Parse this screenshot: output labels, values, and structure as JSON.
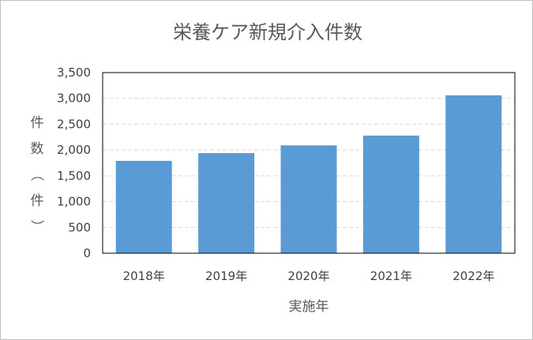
{
  "chart_data": {
    "type": "bar",
    "title": "栄養ケア新規介入件数",
    "xlabel": "実施年",
    "ylabel": "件数（件）",
    "categories": [
      "2018年",
      "2019年",
      "2020年",
      "2021年",
      "2022年"
    ],
    "values": [
      1790,
      1940,
      2090,
      2280,
      3060
    ],
    "ylim": [
      0,
      3500
    ],
    "yticks": [
      "0",
      "500",
      "1,000",
      "1,500",
      "2,000",
      "2,500",
      "3,000",
      "3,500"
    ],
    "grid": true,
    "bar_color": "#5b9bd5",
    "grid_color": "#d9d9d9"
  }
}
